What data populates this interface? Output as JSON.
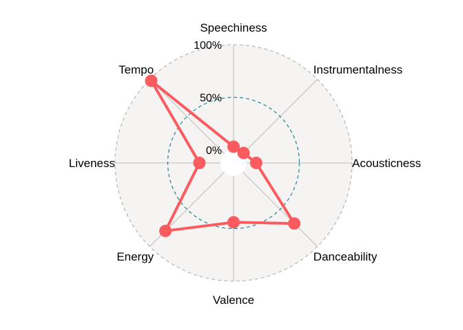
{
  "chart_data": {
    "type": "radar",
    "axes": [
      "Speechiness",
      "Instrumentalness",
      "Acousticness",
      "Danceability",
      "Valence",
      "Energy",
      "Liveness",
      "Tempo"
    ],
    "series": [
      {
        "values": [
          0.03,
          0.01,
          0.09,
          0.69,
          0.44,
          0.79,
          0.2,
          0.98
        ]
      }
    ],
    "radial_ticks": [
      "0%",
      "50%",
      "100%"
    ],
    "radial_tick_values": [
      0,
      0.5,
      1.0
    ],
    "radial_range": [
      0,
      1
    ],
    "colors": {
      "series": "#f95b5f",
      "panel": "#f5f4f3",
      "outer_ring": "#bdbab8",
      "mid_ring": "#2e8b99",
      "spokes": "#c8c6c4"
    }
  }
}
